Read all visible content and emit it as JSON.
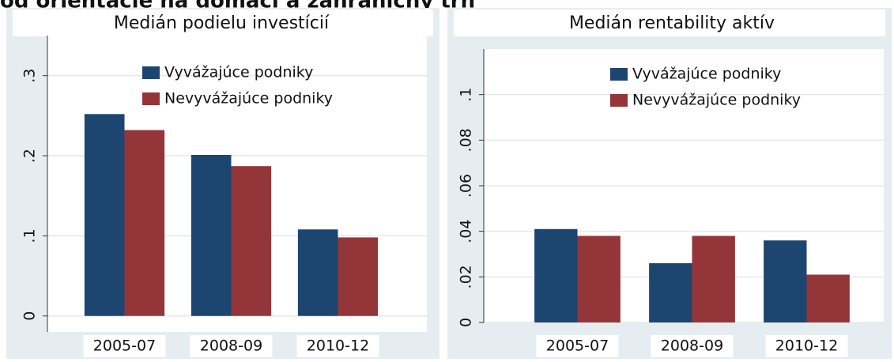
{
  "heading": "od orientácie na domáci a zahraničný trh",
  "chart_data": [
    {
      "type": "bar",
      "title": "Medián podielu investícií",
      "categories": [
        "2005-07",
        "2008-09",
        "2010-12"
      ],
      "series": [
        {
          "name": "Vyvážajúce podniky",
          "color": "#1c4670",
          "values": [
            0.252,
            0.201,
            0.108
          ]
        },
        {
          "name": "Nevyvážajúce podniky",
          "color": "#94353a",
          "values": [
            0.232,
            0.187,
            0.098
          ]
        }
      ],
      "ylim": [
        -0.02,
        0.35
      ],
      "yticks": [
        0,
        {
          "value": 0.1,
          "label": ".1"
        },
        {
          "value": 0.2,
          "label": ".2"
        },
        {
          "value": 0.3,
          "label": ".3"
        }
      ],
      "grid": true,
      "legend": "top"
    },
    {
      "type": "bar",
      "title": "Medián rentability aktív",
      "categories": [
        "2005-07",
        "2008-09",
        "2010-12"
      ],
      "series": [
        {
          "name": "Vyvážajúce podniky",
          "color": "#1c4670",
          "values": [
            0.041,
            0.026,
            0.036
          ]
        },
        {
          "name": "Nevyvážajúce podniky",
          "color": "#94353a",
          "values": [
            0.038,
            0.038,
            0.021
          ]
        }
      ],
      "ylim": [
        0,
        0.12
      ],
      "yticks": [
        0,
        {
          "value": 0.02,
          "label": ".02"
        },
        {
          "value": 0.04,
          "label": ".04"
        },
        {
          "value": 0.06,
          "label": ".06"
        },
        {
          "value": 0.08,
          "label": ".08"
        },
        {
          "value": 0.1,
          "label": ".1"
        }
      ],
      "grid": true,
      "legend": "top"
    }
  ]
}
